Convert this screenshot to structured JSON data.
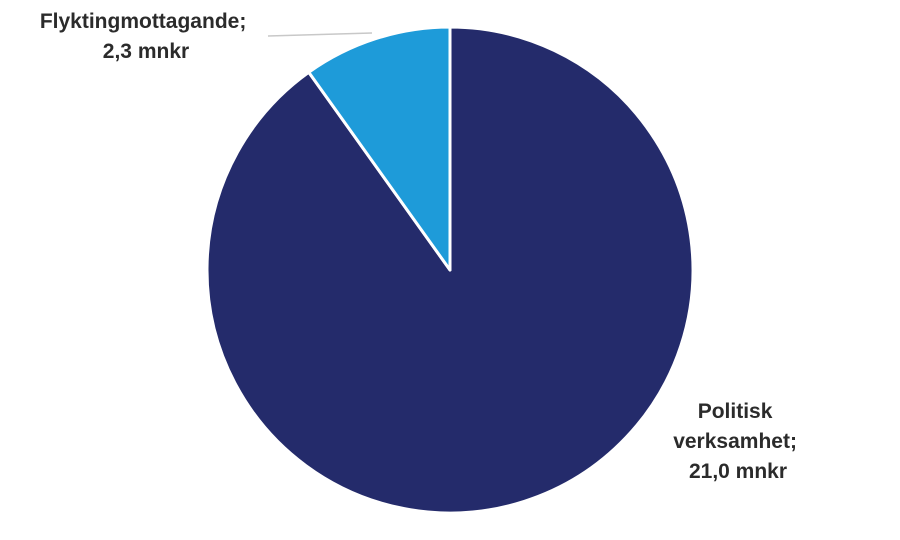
{
  "chart_data": {
    "type": "pie",
    "title": "",
    "unit": "mnkr",
    "slices": [
      {
        "name": "Politisk verksamhet",
        "value": 21.0,
        "label_lines": [
          "Politisk",
          "verksamhet;",
          "21,0 mnkr"
        ],
        "color": "#242b6b"
      },
      {
        "name": "Flyktingmottagande",
        "value": 2.3,
        "label_lines": [
          "Flyktingmottagande;",
          "2,3 mnkr"
        ],
        "color": "#1e9bd9"
      }
    ],
    "legend": "none"
  },
  "colors": {
    "background": "#ffffff",
    "slice_border": "#ffffff",
    "label_text": "#2b2b2b",
    "leader_line": "#c8c8c8"
  }
}
